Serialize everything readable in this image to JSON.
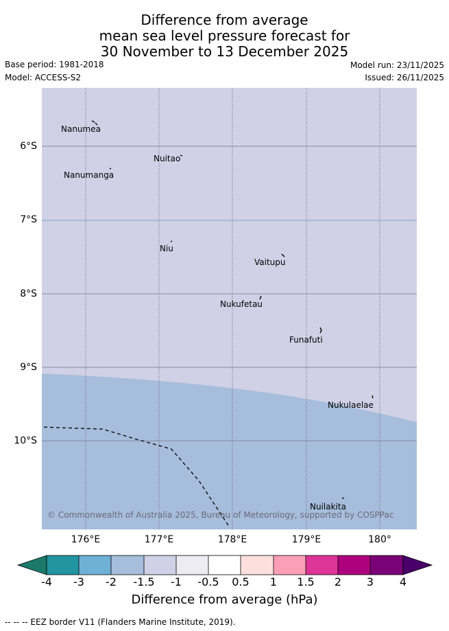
{
  "title": {
    "line1": "Difference from average",
    "line2": "mean sea level pressure forecast for",
    "line3": "30 November to 13 December 2025"
  },
  "meta": {
    "base_period": "Base period: 1981-2018",
    "model": "Model: ACCESS-S2",
    "model_run": "Model run: 23/11/2025",
    "issued": "Issued: 26/11/2025"
  },
  "map": {
    "lat_labels": [
      "6°S",
      "7°S",
      "8°S",
      "9°S",
      "10°S"
    ],
    "lon_labels": [
      "176°E",
      "177°E",
      "178°E",
      "179°E",
      "180°"
    ],
    "places": [
      "Nanumea",
      "Nuitao",
      "Nanumanga",
      "Niu",
      "Vaitupu",
      "Nukufetau",
      "Funafuti",
      "Nukulaelae",
      "Nuilakita"
    ],
    "copyright": "© Commonwealth of Australia 2025, Bureau of Meteorology, supported by COSPPac",
    "fill_colors": {
      "upper": "#d0d1e6",
      "lower": "#a6bddb"
    },
    "contour_color": "#a6bddb"
  },
  "colorbar": {
    "ticks": [
      "-4",
      "-3",
      "-2",
      "-1.5",
      "-1",
      "-0.5",
      "0.5",
      "1",
      "1.5",
      "2",
      "3",
      "4"
    ],
    "colors": [
      "#1b7a6a",
      "#2196a0",
      "#6fb0d6",
      "#a6bddb",
      "#d0d1e6",
      "#ececf2",
      "#ffffff",
      "#fde0dd",
      "#fa9fb5",
      "#dd3497",
      "#ae017e",
      "#7a0177",
      "#49006a"
    ],
    "label": "Difference from average (hPa)"
  },
  "footer": "-- -- -- EEZ border V11 (Flanders Marine Institute, 2019)."
}
